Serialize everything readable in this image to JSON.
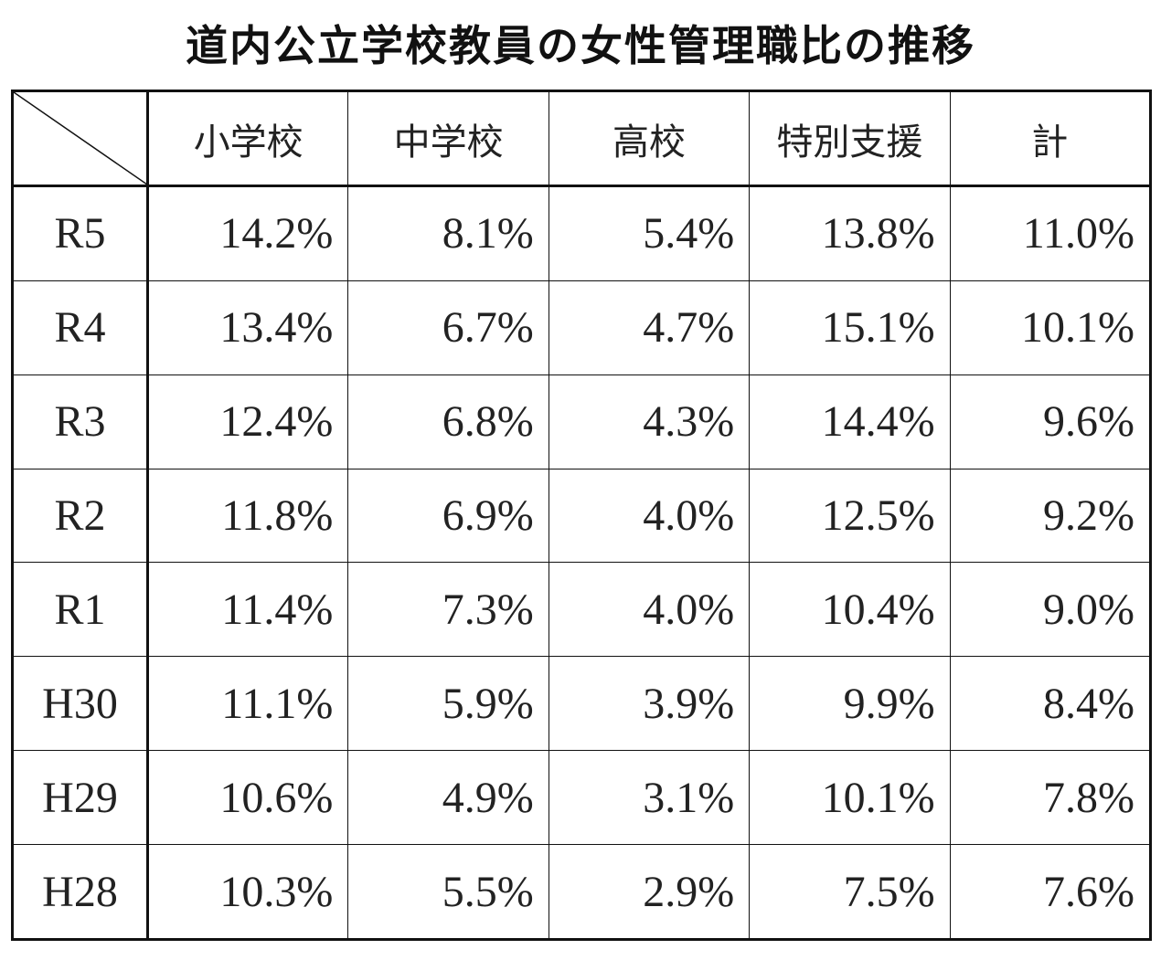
{
  "title": "道内公立学校教員の女性管理職比の推移",
  "table": {
    "columns": [
      "小学校",
      "中学校",
      "高校",
      "特別支援",
      "計"
    ],
    "rows": [
      {
        "label": "R5",
        "cells": [
          "14.2%",
          "8.1%",
          "5.4%",
          "13.8%",
          "11.0%"
        ]
      },
      {
        "label": "R4",
        "cells": [
          "13.4%",
          "6.7%",
          "4.7%",
          "15.1%",
          "10.1%"
        ]
      },
      {
        "label": "R3",
        "cells": [
          "12.4%",
          "6.8%",
          "4.3%",
          "14.4%",
          "9.6%"
        ]
      },
      {
        "label": "R2",
        "cells": [
          "11.8%",
          "6.9%",
          "4.0%",
          "12.5%",
          "9.2%"
        ]
      },
      {
        "label": "R1",
        "cells": [
          "11.4%",
          "7.3%",
          "4.0%",
          "10.4%",
          "9.0%"
        ]
      },
      {
        "label": "H30",
        "cells": [
          "11.1%",
          "5.9%",
          "3.9%",
          "9.9%",
          "8.4%"
        ]
      },
      {
        "label": "H29",
        "cells": [
          "10.6%",
          "4.9%",
          "3.1%",
          "10.1%",
          "7.8%"
        ]
      },
      {
        "label": "H28",
        "cells": [
          "10.3%",
          "5.5%",
          "2.9%",
          "7.5%",
          "7.6%"
        ]
      }
    ]
  }
}
